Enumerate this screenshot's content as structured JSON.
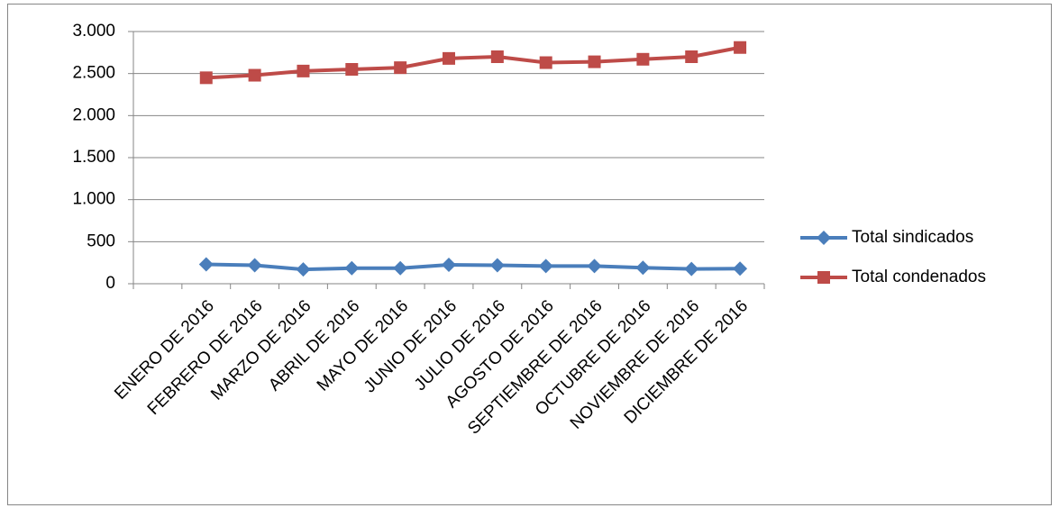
{
  "chart_data": {
    "type": "line",
    "categories": [
      null,
      "ENERO DE 2016",
      "FEBRERO DE 2016",
      "MARZO DE 2016",
      "ABRIL DE 2016",
      "MAYO DE 2016",
      "JUNIO DE 2016",
      "JULIO DE 2016",
      "AGOSTO DE 2016",
      "SEPTIEMBRE DE 2016",
      "OCTUBRE DE 2016",
      "NOVIEMBRE DE 2016",
      "DICIEMBRE DE 2016"
    ],
    "series": [
      {
        "name": "Total sindicados",
        "color": "#4a7ebb",
        "marker": "diamond",
        "values": [
          null,
          230,
          220,
          170,
          185,
          185,
          225,
          220,
          210,
          210,
          190,
          175,
          180
        ]
      },
      {
        "name": "Total condenados",
        "color": "#be4b48",
        "marker": "square",
        "values": [
          null,
          2450,
          2480,
          2530,
          2550,
          2570,
          2680,
          2700,
          2630,
          2640,
          2670,
          2700,
          2810
        ]
      }
    ],
    "ylim": [
      0,
      3000
    ],
    "yticks": [
      0,
      500,
      {
        "value": 1000,
        "label": "1.000"
      },
      {
        "value": 1500,
        "label": "1.500"
      },
      {
        "value": 2000,
        "label": "2.000"
      },
      {
        "value": 2500,
        "label": "2.500"
      },
      {
        "value": 3000,
        "label": "3.000"
      }
    ],
    "grid": true,
    "legend": "right"
  }
}
